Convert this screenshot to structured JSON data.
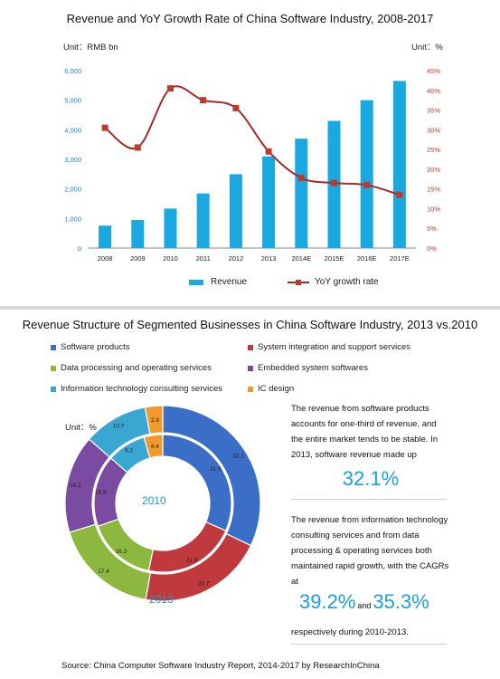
{
  "chart_data": [
    {
      "type": "bar",
      "title": "Revenue and YoY Growth Rate of China Software Industry, 2008-2017",
      "unit_left": "Unit：RMB bn",
      "unit_right": "Unit：%",
      "categories": [
        "2008",
        "2009",
        "2010",
        "2011",
        "2012",
        "2013",
        "2014E",
        "2015E",
        "2016E",
        "2017E"
      ],
      "series": [
        {
          "name": "Revenue",
          "type": "bar",
          "axis": "left",
          "values": [
            757,
            950,
            1336,
            1847,
            2497,
            3100,
            3700,
            4300,
            5000,
            5650
          ]
        },
        {
          "name": "YoY growth rate",
          "type": "line",
          "axis": "right",
          "values": [
            30.5,
            25.5,
            40.5,
            37.5,
            35.5,
            24.5,
            17.8,
            16.5,
            16.0,
            13.5
          ]
        }
      ],
      "yleft_ticks": [
        "0",
        "1,000",
        "2,000",
        "3,000",
        "4,000",
        "5,000",
        "6,000"
      ],
      "yleft_lim": [
        0,
        6000
      ],
      "yright_ticks": [
        "0%",
        "5%",
        "10%",
        "15%",
        "20%",
        "25%",
        "30%",
        "35%",
        "40%",
        "45%"
      ],
      "yright_lim": [
        0,
        45
      ],
      "legend_position": "bottom",
      "colors": {
        "bar": "#1aa8e0",
        "line": "#a52a2a",
        "left_axis_text": "#1a86c8",
        "right_axis_text": "#c0392b"
      }
    },
    {
      "type": "pie",
      "title": "Revenue Structure of Segmented Businesses in China Software Industry, 2013 vs.2010",
      "unit": "Unit：%",
      "categories": [
        "Software products",
        "System integration and support services",
        "Data processing and operating services",
        "Embedded system softwares",
        "Information technology consulting services",
        "IC design"
      ],
      "colors": [
        "#3b6fc7",
        "#c0393d",
        "#8cb840",
        "#7a4ba0",
        "#3aa7d2",
        "#f09a2c"
      ],
      "series": [
        {
          "name": "2010",
          "ring": "inner",
          "values": [
            31.5,
            21.8,
            16.3,
            16.8,
            9.2,
            4.4
          ]
        },
        {
          "name": "2013",
          "ring": "outer",
          "values": [
            32.1,
            20.7,
            17.4,
            16.2,
            10.7,
            2.9
          ]
        }
      ],
      "legend_position": "top"
    }
  ],
  "notes": {
    "p1": "The revenue from software products accounts for one-third of revenue, and the entire market tends to be stable. In 2013, software revenue made up",
    "big1": "32.1%",
    "p2": "The revenue from information technology consulting services and from data processing & operating services both maintained rapid growth, with the CAGRs at",
    "big2a": "39.2%",
    "and": "and",
    "big2b": "35.3%",
    "p3": "respectively during 2010-2013."
  },
  "source": "Source: China Computer Software Industry Report, 2014-2017 by ResearchInChina"
}
